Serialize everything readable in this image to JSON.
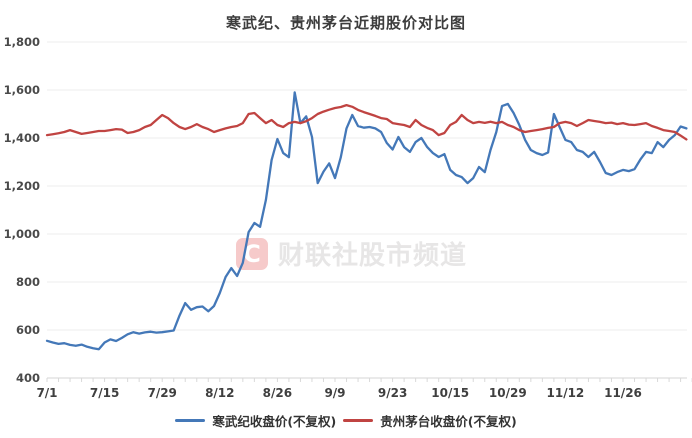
{
  "title": "寒武纪、贵州茅台近期股价对比图",
  "watermark": {
    "logo_glyph": "C",
    "text": "财联社股市频道"
  },
  "legend": [
    {
      "label": "寒武纪收盘价(不复权)",
      "color": "#4478b8"
    },
    {
      "label": "贵州茅台收盘价(不复权)",
      "color": "#c04442"
    }
  ],
  "colors": {
    "cambricon_line": "#4478b8",
    "moutai_line": "#c04442",
    "gridline": "#ececec",
    "axis_line": "#d4d4d4",
    "tick": "#d9d9d9",
    "y_label": "#4a4a4a",
    "x_label": "#3f3f3f",
    "title": "#3d3d3d"
  },
  "chart_data": {
    "type": "line",
    "title": "寒武纪、贵州茅台近期股价对比图",
    "xlabel": "",
    "ylabel": "",
    "ylim": [
      400,
      1800
    ],
    "grid": true,
    "legend_position": "bottom",
    "x_tick_labels": [
      "7/1",
      "7/15",
      "7/29",
      "8/12",
      "8/26",
      "9/9",
      "9/23",
      "10/15",
      "10/29",
      "11/12",
      "11/26"
    ],
    "x_tick_indices": [
      0,
      10,
      20,
      30,
      40,
      50,
      60,
      70,
      80,
      90,
      100
    ],
    "y_tick_labels": [
      "1,800",
      "1,600",
      "1,400",
      "1,200",
      "1,000",
      "800",
      "600",
      "400"
    ],
    "y_tick_values": [
      1800,
      1600,
      1400,
      1200,
      1000,
      800,
      600,
      400
    ],
    "minor_tick_every": 2,
    "series": [
      {
        "name": "寒武纪收盘价(不复权)",
        "color": "#4478b8",
        "values": [
          555,
          548,
          542,
          545,
          538,
          534,
          539,
          530,
          524,
          520,
          548,
          561,
          554,
          567,
          582,
          591,
          585,
          590,
          593,
          589,
          591,
          594,
          598,
          660,
          712,
          684,
          695,
          698,
          678,
          700,
          754,
          821,
          858,
          825,
          880,
          1008,
          1046,
          1030,
          1142,
          1308,
          1396,
          1337,
          1320,
          1590,
          1462,
          1490,
          1404,
          1212,
          1260,
          1294,
          1233,
          1320,
          1440,
          1496,
          1450,
          1443,
          1446,
          1440,
          1425,
          1379,
          1352,
          1404,
          1362,
          1342,
          1383,
          1400,
          1362,
          1337,
          1321,
          1333,
          1267,
          1246,
          1237,
          1212,
          1233,
          1279,
          1258,
          1350,
          1425,
          1533,
          1542,
          1504,
          1454,
          1392,
          1350,
          1337,
          1329,
          1340,
          1500,
          1446,
          1392,
          1383,
          1350,
          1342,
          1321,
          1342,
          1300,
          1254,
          1246,
          1258,
          1267,
          1262,
          1270,
          1310,
          1342,
          1337,
          1383,
          1362,
          1392,
          1412,
          1448,
          1440
        ]
      },
      {
        "name": "贵州茅台收盘价(不复权)",
        "color": "#c04442",
        "values": [
          1412,
          1416,
          1420,
          1425,
          1433,
          1425,
          1417,
          1421,
          1425,
          1429,
          1429,
          1433,
          1437,
          1435,
          1421,
          1425,
          1433,
          1446,
          1454,
          1475,
          1496,
          1483,
          1462,
          1446,
          1437,
          1446,
          1458,
          1446,
          1437,
          1425,
          1433,
          1440,
          1446,
          1450,
          1462,
          1500,
          1504,
          1483,
          1462,
          1475,
          1454,
          1446,
          1462,
          1467,
          1462,
          1470,
          1483,
          1500,
          1510,
          1518,
          1525,
          1529,
          1537,
          1530,
          1517,
          1508,
          1500,
          1492,
          1483,
          1479,
          1462,
          1458,
          1454,
          1446,
          1475,
          1454,
          1442,
          1433,
          1412,
          1421,
          1454,
          1467,
          1496,
          1475,
          1462,
          1467,
          1463,
          1468,
          1462,
          1467,
          1454,
          1446,
          1433,
          1425,
          1429,
          1433,
          1437,
          1442,
          1446,
          1462,
          1467,
          1462,
          1450,
          1462,
          1475,
          1471,
          1467,
          1462,
          1464,
          1458,
          1462,
          1456,
          1454,
          1458,
          1462,
          1450,
          1442,
          1433,
          1429,
          1425,
          1410,
          1394
        ]
      }
    ]
  }
}
